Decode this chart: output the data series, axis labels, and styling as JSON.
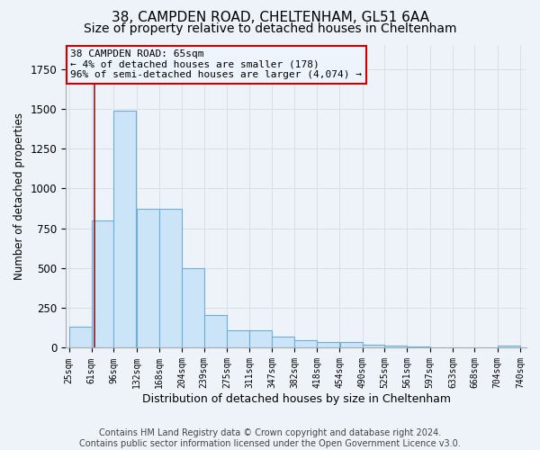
{
  "title1": "38, CAMPDEN ROAD, CHELTENHAM, GL51 6AA",
  "title2": "Size of property relative to detached houses in Cheltenham",
  "xlabel": "Distribution of detached houses by size in Cheltenham",
  "ylabel": "Number of detached properties",
  "footer1": "Contains HM Land Registry data © Crown copyright and database right 2024.",
  "footer2": "Contains public sector information licensed under the Open Government Licence v3.0.",
  "annotation_line1": "38 CAMPDEN ROAD: 65sqm",
  "annotation_line2": "← 4% of detached houses are smaller (178)",
  "annotation_line3": "96% of semi-detached houses are larger (4,074) →",
  "property_size": 65,
  "bar_left_edges": [
    25,
    61,
    96,
    132,
    168,
    204,
    239,
    275,
    311,
    347,
    382,
    418,
    454,
    490,
    525,
    561,
    597,
    633,
    668,
    704
  ],
  "bar_widths": [
    36,
    35,
    36,
    36,
    36,
    35,
    36,
    36,
    36,
    35,
    36,
    36,
    36,
    35,
    36,
    36,
    36,
    35,
    36,
    36
  ],
  "bar_heights": [
    130,
    800,
    1490,
    870,
    870,
    500,
    205,
    110,
    110,
    70,
    50,
    35,
    35,
    20,
    15,
    8,
    5,
    3,
    3,
    15
  ],
  "tick_labels": [
    "25sqm",
    "61sqm",
    "96sqm",
    "132sqm",
    "168sqm",
    "204sqm",
    "239sqm",
    "275sqm",
    "311sqm",
    "347sqm",
    "382sqm",
    "418sqm",
    "454sqm",
    "490sqm",
    "525sqm",
    "561sqm",
    "597sqm",
    "633sqm",
    "668sqm",
    "704sqm",
    "740sqm"
  ],
  "tick_positions": [
    25,
    61,
    96,
    132,
    168,
    204,
    239,
    275,
    311,
    347,
    382,
    418,
    454,
    490,
    525,
    561,
    597,
    633,
    668,
    704,
    740
  ],
  "bar_fill_color": "#cce4f7",
  "bar_edge_color": "#6baed6",
  "vline_color": "#8b1a1a",
  "vline_x": 65,
  "annotation_box_color": "#cc0000",
  "annotation_box_facecolor": "#eef4fb",
  "ylim": [
    0,
    1900
  ],
  "xlim": [
    20,
    750
  ],
  "background_color": "#eef2f9",
  "grid_color": "#d8dfe8",
  "title1_fontsize": 11,
  "title2_fontsize": 10,
  "ylabel_fontsize": 8.5,
  "xlabel_fontsize": 9,
  "tick_fontsize": 7,
  "annotation_fontsize": 8,
  "footer_fontsize": 7,
  "ytick_fontsize": 8.5
}
